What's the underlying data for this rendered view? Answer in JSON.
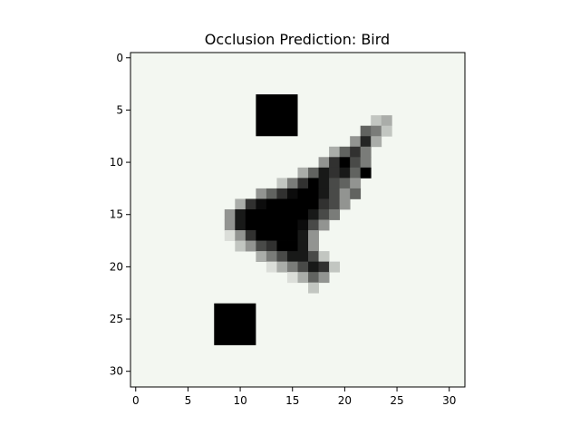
{
  "chart_data": {
    "type": "heatmap",
    "title": "Occlusion Prediction: Bird",
    "xlabel": "",
    "ylabel": "",
    "grid": false,
    "colormap": "gray",
    "background_color": "#f3f7f1",
    "grid_size": [
      32,
      32
    ],
    "xlim": [
      -0.5,
      31.5
    ],
    "ylim": [
      31.5,
      -0.5
    ],
    "x_ticks": [
      0,
      5,
      10,
      15,
      20,
      25,
      30
    ],
    "y_ticks": [
      0,
      5,
      10,
      15,
      20,
      25,
      30
    ],
    "occluder_patches": [
      {
        "x": [
          12,
          15
        ],
        "y": [
          4,
          7
        ]
      },
      {
        "x": [
          8,
          11
        ],
        "y": [
          24,
          27
        ]
      }
    ],
    "cells": [
      [
        23,
        6,
        0.2
      ],
      [
        24,
        6,
        0.3
      ],
      [
        22,
        7,
        0.6
      ],
      [
        23,
        7,
        0.5
      ],
      [
        24,
        7,
        0.2
      ],
      [
        21,
        8,
        0.4
      ],
      [
        22,
        8,
        0.85
      ],
      [
        23,
        8,
        0.3
      ],
      [
        19,
        9,
        0.3
      ],
      [
        20,
        9,
        0.6
      ],
      [
        21,
        9,
        0.8
      ],
      [
        22,
        9,
        0.5
      ],
      [
        18,
        10,
        0.4
      ],
      [
        19,
        10,
        0.8
      ],
      [
        20,
        10,
        1.0
      ],
      [
        21,
        10,
        0.7
      ],
      [
        22,
        10,
        0.5
      ],
      [
        16,
        11,
        0.3
      ],
      [
        17,
        11,
        0.6
      ],
      [
        18,
        11,
        0.9
      ],
      [
        19,
        11,
        0.8
      ],
      [
        20,
        11,
        0.9
      ],
      [
        21,
        11,
        0.6
      ],
      [
        22,
        11,
        1.0
      ],
      [
        14,
        12,
        0.2
      ],
      [
        15,
        12,
        0.5
      ],
      [
        16,
        12,
        0.8
      ],
      [
        17,
        12,
        1.0
      ],
      [
        18,
        12,
        0.9
      ],
      [
        19,
        12,
        0.7
      ],
      [
        20,
        12,
        0.6
      ],
      [
        21,
        12,
        0.4
      ],
      [
        12,
        13,
        0.4
      ],
      [
        13,
        13,
        0.6
      ],
      [
        14,
        13,
        0.8
      ],
      [
        15,
        13,
        0.95
      ],
      [
        16,
        13,
        1.0
      ],
      [
        17,
        13,
        1.0
      ],
      [
        18,
        13,
        0.9
      ],
      [
        19,
        13,
        0.7
      ],
      [
        20,
        13,
        0.4
      ],
      [
        21,
        13,
        0.6
      ],
      [
        10,
        14,
        0.3
      ],
      [
        11,
        14,
        0.8
      ],
      [
        12,
        14,
        0.95
      ],
      [
        13,
        14,
        1.0
      ],
      [
        14,
        14,
        1.0
      ],
      [
        15,
        14,
        1.0
      ],
      [
        16,
        14,
        1.0
      ],
      [
        17,
        14,
        1.0
      ],
      [
        18,
        14,
        0.8
      ],
      [
        19,
        14,
        0.7
      ],
      [
        20,
        14,
        0.4
      ],
      [
        9,
        15,
        0.4
      ],
      [
        10,
        15,
        0.9
      ],
      [
        11,
        15,
        1.0
      ],
      [
        12,
        15,
        1.0
      ],
      [
        13,
        15,
        1.0
      ],
      [
        14,
        15,
        1.0
      ],
      [
        15,
        15,
        1.0
      ],
      [
        16,
        15,
        1.0
      ],
      [
        17,
        15,
        0.9
      ],
      [
        18,
        15,
        0.7
      ],
      [
        19,
        15,
        0.5
      ],
      [
        9,
        16,
        0.4
      ],
      [
        10,
        16,
        0.9
      ],
      [
        11,
        16,
        1.0
      ],
      [
        12,
        16,
        1.0
      ],
      [
        13,
        16,
        1.0
      ],
      [
        14,
        16,
        1.0
      ],
      [
        15,
        16,
        1.0
      ],
      [
        16,
        16,
        0.95
      ],
      [
        17,
        16,
        0.7
      ],
      [
        18,
        16,
        0.4
      ],
      [
        9,
        17,
        0.1
      ],
      [
        10,
        17,
        0.4
      ],
      [
        11,
        17,
        0.8
      ],
      [
        12,
        17,
        1.0
      ],
      [
        13,
        17,
        1.0
      ],
      [
        14,
        17,
        1.0
      ],
      [
        15,
        17,
        1.0
      ],
      [
        16,
        17,
        0.9
      ],
      [
        17,
        17,
        0.4
      ],
      [
        10,
        18,
        0.2
      ],
      [
        11,
        18,
        0.4
      ],
      [
        12,
        18,
        0.7
      ],
      [
        13,
        18,
        0.8
      ],
      [
        14,
        18,
        1.0
      ],
      [
        15,
        18,
        1.0
      ],
      [
        16,
        18,
        0.9
      ],
      [
        17,
        18,
        0.4
      ],
      [
        12,
        19,
        0.3
      ],
      [
        13,
        19,
        0.5
      ],
      [
        14,
        19,
        0.7
      ],
      [
        15,
        19,
        0.9
      ],
      [
        16,
        19,
        0.9
      ],
      [
        17,
        19,
        0.7
      ],
      [
        18,
        19,
        0.2
      ],
      [
        13,
        20,
        0.1
      ],
      [
        14,
        20,
        0.3
      ],
      [
        15,
        20,
        0.5
      ],
      [
        16,
        20,
        0.7
      ],
      [
        17,
        20,
        0.9
      ],
      [
        18,
        20,
        0.8
      ],
      [
        19,
        20,
        0.2
      ],
      [
        15,
        21,
        0.1
      ],
      [
        16,
        21,
        0.3
      ],
      [
        17,
        21,
        0.6
      ],
      [
        18,
        21,
        0.4
      ],
      [
        17,
        22,
        0.2
      ]
    ]
  }
}
